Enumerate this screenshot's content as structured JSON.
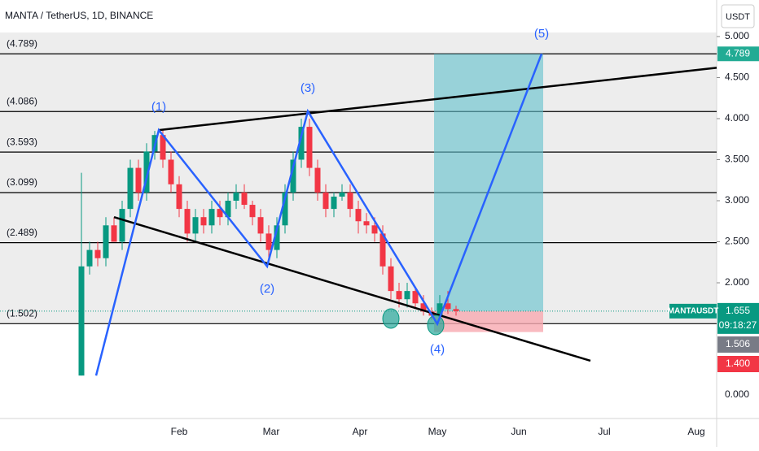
{
  "chart_data": {
    "type": "candlestick",
    "title": "MANTA / TetherUS, 1D, BINANCE",
    "currency": "USDT",
    "symbol": "MANTAUSDT",
    "countdown": "09:18:27",
    "ylim": [
      0.347,
      5.445
    ],
    "yticks": [
      {
        "value": 2,
        "label": "2.000"
      },
      {
        "value": 2.5,
        "label": "2.500"
      },
      {
        "value": 3,
        "label": "3.000"
      },
      {
        "value": 3.5,
        "label": "3.500"
      },
      {
        "value": 4,
        "label": "4.000"
      },
      {
        "value": 4.5,
        "label": "4.500"
      },
      {
        "value": 5,
        "label": "5.000"
      }
    ],
    "bottom_label": "0.000",
    "months": [
      "Feb",
      "Mar",
      "Apr",
      "May",
      "Jun",
      "Jul",
      "Aug"
    ],
    "up_color": "#089981",
    "down_color": "#f23645",
    "open": [
      0.87,
      2.2,
      2.4,
      2.3,
      2.7,
      2.5,
      2.9,
      3.4,
      3.1,
      3.6,
      3.8,
      3.5,
      3.2,
      2.9,
      2.6,
      2.8,
      2.7,
      2.9,
      2.8,
      3.0,
      3.1,
      2.95,
      2.8,
      2.6,
      2.4,
      2.7,
      3.1,
      3.5,
      3.9,
      3.4,
      3.1,
      2.9,
      3.05,
      3.1,
      2.9,
      2.75,
      2.7,
      2.6,
      2.2,
      1.9,
      1.8,
      1.9,
      1.75,
      1.65,
      1.6,
      1.75,
      1.68
    ],
    "high": [
      3.34,
      2.5,
      2.5,
      2.8,
      2.8,
      3.0,
      3.5,
      3.5,
      3.7,
      3.85,
      3.86,
      3.6,
      3.3,
      3.0,
      2.9,
      2.9,
      3.0,
      3.0,
      3.1,
      3.2,
      3.2,
      3.0,
      2.9,
      2.7,
      2.8,
      3.2,
      3.6,
      4.0,
      4.0,
      3.5,
      3.2,
      3.1,
      3.2,
      3.2,
      3.0,
      2.85,
      2.8,
      2.7,
      2.3,
      2.0,
      2.0,
      1.95,
      1.85,
      1.7,
      1.85,
      1.9,
      1.72
    ],
    "low": [
      0.87,
      2.1,
      2.2,
      2.2,
      2.5,
      2.4,
      2.8,
      3.0,
      3.0,
      3.5,
      3.4,
      3.1,
      2.8,
      2.5,
      2.5,
      2.6,
      2.6,
      2.7,
      2.7,
      2.9,
      2.9,
      2.7,
      2.5,
      2.3,
      2.3,
      2.6,
      3.0,
      3.4,
      3.3,
      3.0,
      2.8,
      2.8,
      3.0,
      2.8,
      2.6,
      2.6,
      2.5,
      2.1,
      1.8,
      1.7,
      1.7,
      1.7,
      1.6,
      1.55,
      1.55,
      1.62,
      1.6
    ],
    "close": [
      2.2,
      2.4,
      2.3,
      2.7,
      2.5,
      2.9,
      3.4,
      3.1,
      3.6,
      3.8,
      3.5,
      3.2,
      2.9,
      2.6,
      2.8,
      2.7,
      2.9,
      2.8,
      3.0,
      3.1,
      2.95,
      2.8,
      2.6,
      2.4,
      2.7,
      3.1,
      3.5,
      3.9,
      3.4,
      3.1,
      2.9,
      3.05,
      3.1,
      2.9,
      2.75,
      2.7,
      2.6,
      2.2,
      1.9,
      1.8,
      1.9,
      1.75,
      1.65,
      1.6,
      1.75,
      1.68,
      1.655
    ],
    "levels": [
      {
        "value": 4.789,
        "label": "(4.789)"
      },
      {
        "value": 4.086,
        "label": "(4.086)"
      },
      {
        "value": 3.593,
        "label": "(3.593)"
      },
      {
        "value": 3.099,
        "label": "(3.099)"
      },
      {
        "value": 2.489,
        "label": "(2.489)"
      },
      {
        "value": 1.502,
        "label": "(1.502)"
      }
    ],
    "wave": {
      "values": [
        0.87,
        3.86,
        2.2,
        4.09,
        1.5,
        4.789
      ],
      "labels": [
        null,
        "(1)",
        "(2)",
        "(3)",
        "(4)",
        "(5)"
      ]
    },
    "upper_trend": [
      3.86,
      4.62
    ],
    "lower_trend": [
      2.8,
      1.05
    ],
    "position": {
      "target": 4.789,
      "entry": 1.655,
      "stop": 1.4,
      "target_label": "4.789",
      "entry_label": "1.655",
      "stop_label": "1.400"
    },
    "marker_price": {
      "value": 1.506,
      "label": "1.506"
    }
  }
}
